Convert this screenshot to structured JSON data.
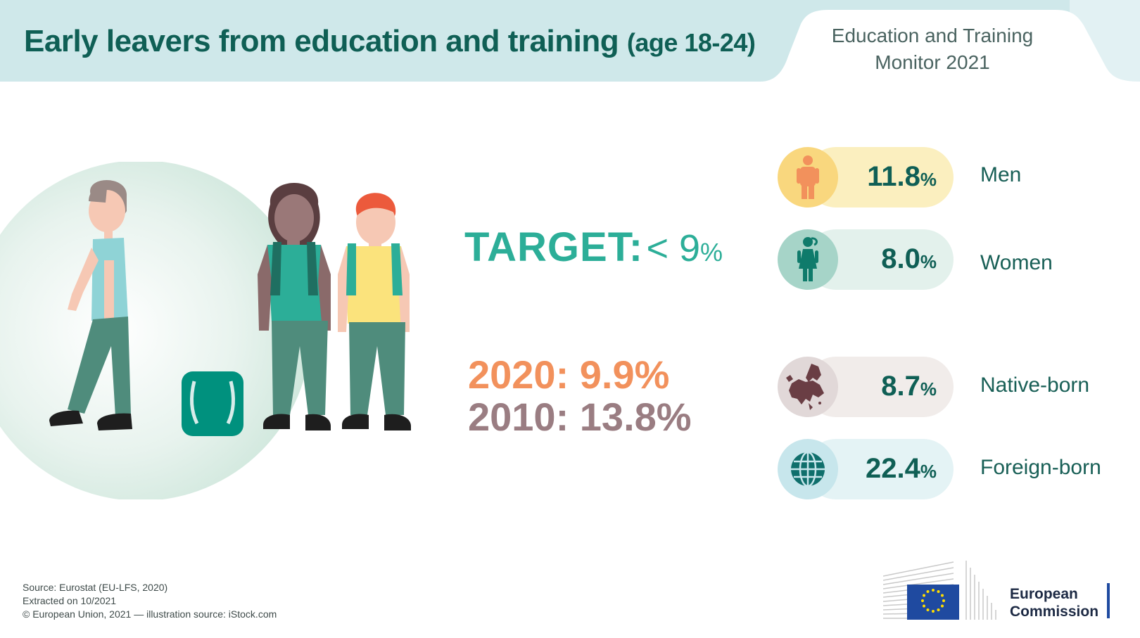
{
  "header": {
    "title_main": "Early leavers from education and training",
    "title_age": "(age 18-24)",
    "monitor_line1": "Education and Training",
    "monitor_line2": "Monitor 2021"
  },
  "target": {
    "label": "TARGET:",
    "value": "< 9",
    "pct": "%"
  },
  "years": {
    "y2020": "2020: 9.9%",
    "y2010": "2010: 13.8%"
  },
  "stats": [
    {
      "value": "11.8",
      "pct": "%",
      "label": "Men",
      "icon": "man-icon",
      "circle_color": "#f9d77e",
      "pill_color": "#fbefbf"
    },
    {
      "value": "8.0",
      "pct": "%",
      "label": "Women",
      "icon": "woman-icon",
      "circle_color": "#a6d4c8",
      "pill_color": "#e3f1ec"
    },
    {
      "value": "8.7",
      "pct": "%",
      "label": "Native-born",
      "icon": "europe-map-icon",
      "circle_color": "#e1d8d8",
      "pill_color": "#f1ecea"
    },
    {
      "value": "22.4",
      "pct": "%",
      "label": "Foreign-born",
      "icon": "globe-icon",
      "circle_color": "#c7e6ec",
      "pill_color": "#e4f3f5"
    }
  ],
  "source": {
    "line1": "Source: Eurostat (EU-LFS, 2020)",
    "line2": "Extracted on 10/2021",
    "line3": "© European Union, 2021 — illustration source: iStock.com"
  },
  "logo": {
    "line1": "European",
    "line2": "Commission"
  },
  "colors": {
    "title": "#0f5f55",
    "target": "#2cae98",
    "y2020": "#f2915c",
    "y2010": "#9a7d82",
    "eu_blue": "#1f4aa0",
    "eu_star": "#ffdd00"
  }
}
